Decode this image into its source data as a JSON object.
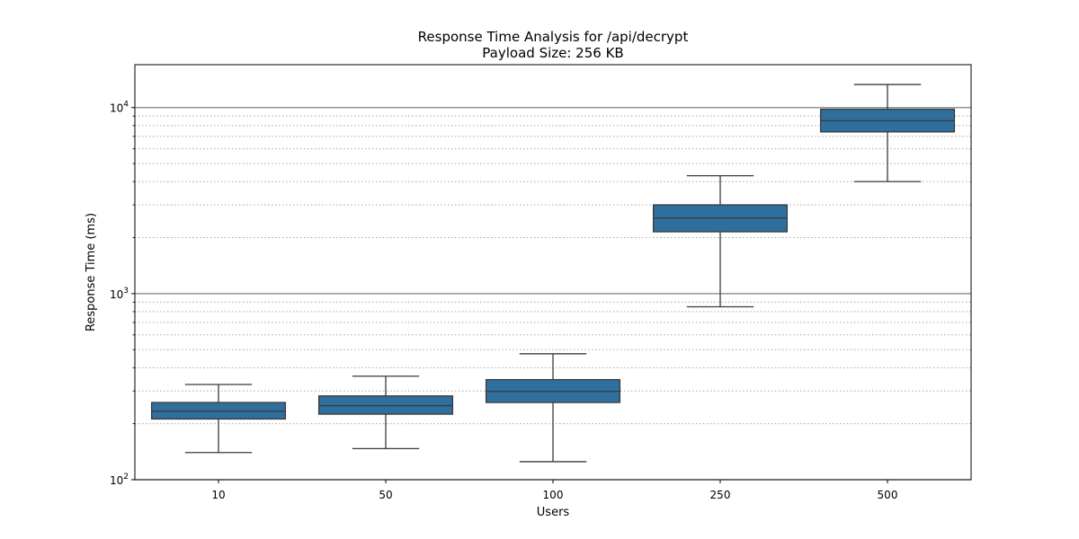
{
  "chart_data": {
    "type": "box",
    "title": "Response Time Analysis for /api/decrypt",
    "subtitle": "Payload Size: 256 KB",
    "xlabel": "Users",
    "ylabel": "Response Time (ms)",
    "yscale": "log",
    "ylim": [
      100,
      17000
    ],
    "y_major_ticks": [
      {
        "value": 100,
        "base": "10",
        "exp": "2"
      },
      {
        "value": 1000,
        "base": "10",
        "exp": "3"
      },
      {
        "value": 10000,
        "base": "10",
        "exp": "4"
      }
    ],
    "categories": [
      "10",
      "50",
      "100",
      "250",
      "500"
    ],
    "boxes": [
      {
        "category": "10",
        "whisker_low": 140,
        "q1": 212,
        "median": 233,
        "q3": 260,
        "whisker_high": 325
      },
      {
        "category": "50",
        "whisker_low": 147,
        "q1": 225,
        "median": 250,
        "q3": 282,
        "whisker_high": 360
      },
      {
        "category": "100",
        "whisker_low": 125,
        "q1": 260,
        "median": 298,
        "q3": 345,
        "whisker_high": 475
      },
      {
        "category": "250",
        "whisker_low": 850,
        "q1": 2150,
        "median": 2550,
        "q3": 3000,
        "whisker_high": 4300
      },
      {
        "category": "500",
        "whisker_low": 4000,
        "q1": 7400,
        "median": 8500,
        "q3": 9800,
        "whisker_high": 13300
      }
    ],
    "grid": {
      "major": "solid",
      "minor": "dotted",
      "axis": "y"
    },
    "colors": {
      "box_fill": "#2f6f9e",
      "box_edge": "#3a3a3a",
      "grid_major": "#808080",
      "grid_minor": "#999999"
    }
  }
}
